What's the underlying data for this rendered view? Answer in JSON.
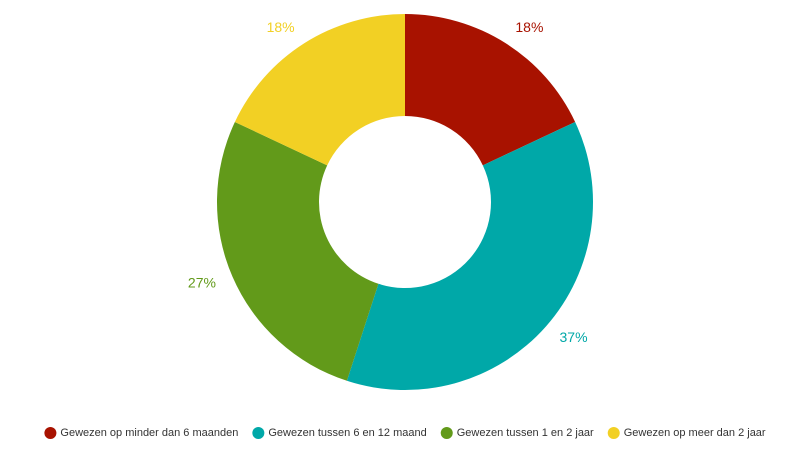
{
  "chart_data": {
    "type": "donut",
    "categories": [
      "Gewezen op minder dan 6 maanden",
      "Gewezen tussen 6 en 12 maand",
      "Gewezen tussen 1 en 2 jaar",
      "Gewezen op meer dan 2 jaar"
    ],
    "values": [
      18,
      37,
      27,
      18
    ],
    "value_labels": [
      "18%",
      "37%",
      "27%",
      "18%"
    ],
    "colors": [
      "#a81200",
      "#00a8a8",
      "#629a1a",
      "#f2d024"
    ],
    "legend": "bottom"
  }
}
